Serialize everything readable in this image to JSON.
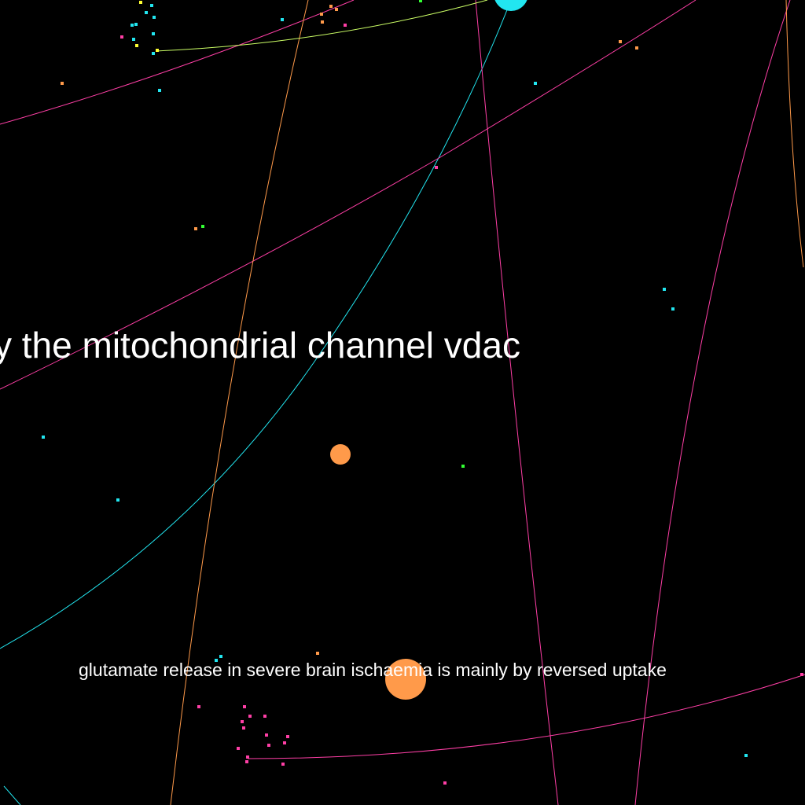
{
  "labels": {
    "large": "y the mitochondrial channel vdac",
    "small": "glutamate release in severe brain ischaemia is mainly by reversed uptake"
  },
  "colors": {
    "background": "#000000",
    "cyan": "#22e6f0",
    "pink": "#ff3fa6",
    "orange": "#ff9a4a",
    "yellow": "#ffff33",
    "green": "#33ff33",
    "lightgreen": "#ccff66",
    "text": "#ffffff"
  }
}
